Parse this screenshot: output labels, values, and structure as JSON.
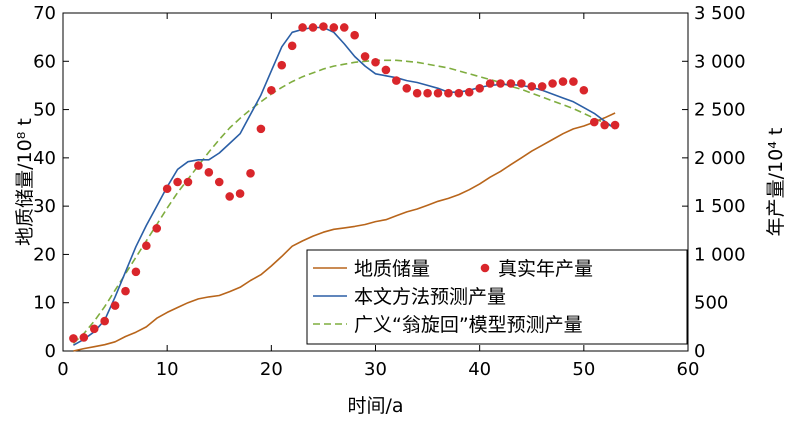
{
  "chart_data": {
    "type": "line",
    "xlabel": "时间/a",
    "ylabel_left": "地质储量/10⁸ t",
    "ylabel_right": "年产量/10⁴ t",
    "xlim": [
      0,
      60
    ],
    "ylim_left": [
      0,
      70
    ],
    "ylim_right": [
      0,
      3500
    ],
    "x_ticks": [
      "0",
      "10",
      "20",
      "30",
      "40",
      "50",
      "60"
    ],
    "y_left_ticks": [
      "0",
      "10",
      "20",
      "30",
      "40",
      "50",
      "60",
      "70"
    ],
    "y_right_ticks": [
      "0",
      "500",
      "1 000",
      "1 500",
      "2 000",
      "2 500",
      "3 000",
      "3 500"
    ],
    "grid": false,
    "legend_position": "bottom-right",
    "series": [
      {
        "name": "地质储量",
        "axis": "left",
        "style": "line",
        "color": "#b8651b",
        "x": [
          1,
          2,
          3,
          4,
          5,
          6,
          7,
          8,
          9,
          10,
          11,
          12,
          13,
          14,
          15,
          16,
          17,
          18,
          19,
          20,
          21,
          22,
          23,
          24,
          25,
          26,
          27,
          28,
          29,
          30,
          31,
          32,
          33,
          34,
          35,
          36,
          37,
          38,
          39,
          40,
          41,
          42,
          43,
          44,
          45,
          46,
          47,
          48,
          49,
          50,
          51,
          52,
          53
        ],
        "values": [
          0,
          0.5,
          0.9,
          1.3,
          1.9,
          3.0,
          3.9,
          5.0,
          6.8,
          8.0,
          9.0,
          10.0,
          10.8,
          11.2,
          11.5,
          12.3,
          13.2,
          14.6,
          15.8,
          17.6,
          19.6,
          21.7,
          22.8,
          23.8,
          24.6,
          25.2,
          25.5,
          25.8,
          26.2,
          26.8,
          27.2,
          28.0,
          28.8,
          29.4,
          30.2,
          31.0,
          31.6,
          32.4,
          33.4,
          34.6,
          36.0,
          37.2,
          38.6,
          40.0,
          41.4,
          42.6,
          43.8,
          45.0,
          46.0,
          46.6,
          47.4,
          48.3,
          49.3
        ]
      },
      {
        "name": "真实年产量",
        "axis": "right",
        "style": "scatter",
        "color": "#d9262b",
        "x": [
          1,
          2,
          3,
          4,
          5,
          6,
          7,
          8,
          9,
          10,
          11,
          12,
          13,
          14,
          15,
          16,
          17,
          18,
          19,
          20,
          21,
          22,
          23,
          24,
          25,
          26,
          27,
          28,
          29,
          30,
          31,
          32,
          33,
          34,
          35,
          36,
          37,
          38,
          39,
          40,
          41,
          42,
          43,
          44,
          45,
          46,
          47,
          48,
          49,
          50,
          51,
          52,
          53
        ],
        "values": [
          130,
          140,
          230,
          310,
          470,
          620,
          820,
          1090,
          1270,
          1680,
          1750,
          1750,
          1920,
          1850,
          1750,
          1600,
          1630,
          1840,
          2300,
          2700,
          2960,
          3160,
          3350,
          3350,
          3360,
          3350,
          3350,
          3270,
          3050,
          2990,
          2910,
          2800,
          2720,
          2670,
          2670,
          2670,
          2670,
          2670,
          2680,
          2720,
          2770,
          2770,
          2770,
          2770,
          2740,
          2740,
          2770,
          2790,
          2790,
          2700,
          2370,
          2340,
          2340
        ]
      },
      {
        "name": "本文方法预测产量",
        "axis": "right",
        "style": "line",
        "color": "#2b5fa6",
        "x": [
          1,
          2,
          3,
          4,
          5,
          6,
          7,
          8,
          9,
          10,
          11,
          12,
          13,
          14,
          15,
          16,
          17,
          18,
          19,
          20,
          21,
          22,
          23,
          24,
          25,
          26,
          27,
          28,
          29,
          30,
          31,
          32,
          33,
          34,
          35,
          36,
          37,
          38,
          39,
          40,
          41,
          42,
          43,
          44,
          45,
          46,
          47,
          48,
          49,
          50,
          51,
          52,
          53
        ],
        "values": [
          60,
          120,
          200,
          320,
          560,
          820,
          1080,
          1300,
          1500,
          1700,
          1880,
          1960,
          1980,
          1980,
          2050,
          2150,
          2250,
          2450,
          2650,
          2900,
          3150,
          3300,
          3330,
          3350,
          3350,
          3300,
          3180,
          3050,
          2950,
          2870,
          2850,
          2830,
          2800,
          2780,
          2750,
          2720,
          2680,
          2680,
          2700,
          2730,
          2750,
          2760,
          2760,
          2750,
          2730,
          2700,
          2660,
          2620,
          2580,
          2520,
          2460,
          2380,
          2300
        ]
      },
      {
        "name": "广义“翁旋回”模型预测产量",
        "axis": "right",
        "style": "dashed",
        "color": "#7fad3f",
        "x": [
          1,
          2,
          3,
          4,
          5,
          6,
          7,
          8,
          9,
          10,
          11,
          12,
          13,
          14,
          15,
          16,
          17,
          18,
          19,
          20,
          21,
          22,
          23,
          24,
          25,
          26,
          27,
          28,
          29,
          30,
          31,
          32,
          33,
          34,
          35,
          36,
          37,
          38,
          39,
          40,
          41,
          42,
          43,
          44,
          45,
          46,
          47,
          48,
          49,
          50,
          51,
          52,
          53
        ],
        "values": [
          80,
          180,
          310,
          460,
          630,
          800,
          970,
          1140,
          1310,
          1480,
          1640,
          1780,
          1920,
          2060,
          2190,
          2310,
          2410,
          2500,
          2580,
          2660,
          2730,
          2790,
          2840,
          2880,
          2920,
          2950,
          2970,
          2990,
          3000,
          3010,
          3010,
          3010,
          3000,
          2990,
          2970,
          2950,
          2930,
          2900,
          2870,
          2840,
          2810,
          2780,
          2740,
          2710,
          2670,
          2630,
          2590,
          2550,
          2510,
          2460,
          2410,
          2360,
          2310
        ]
      }
    ]
  }
}
